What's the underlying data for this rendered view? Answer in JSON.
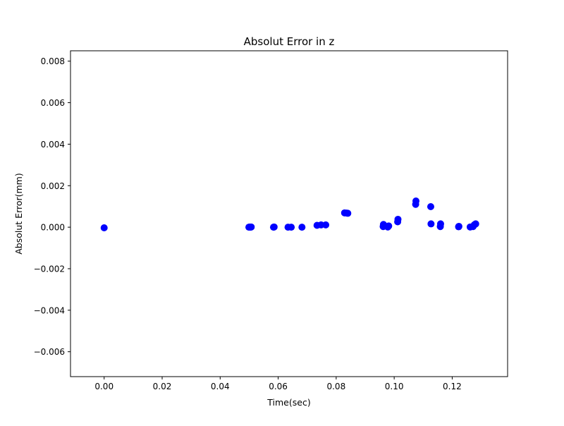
{
  "chart_data": {
    "type": "scatter",
    "title": "Absolut Error in z",
    "xlabel": "Time(sec)",
    "ylabel": "Absolut Error(mm)",
    "xlim": [
      -0.0116,
      0.1391
    ],
    "ylim": [
      -0.0072,
      0.0085
    ],
    "xticks": [
      0.0,
      0.02,
      0.04,
      0.06,
      0.08,
      0.1,
      0.12
    ],
    "xtick_labels": [
      "0.00",
      "0.02",
      "0.04",
      "0.06",
      "0.08",
      "0.10",
      "0.12"
    ],
    "yticks": [
      -0.006,
      -0.004,
      -0.002,
      0.0,
      0.002,
      0.004,
      0.006,
      0.008
    ],
    "ytick_labels": [
      "−0.006",
      "−0.004",
      "−0.002",
      "0.000",
      "0.002",
      "0.004",
      "0.006",
      "0.008"
    ],
    "grid": false,
    "legend": "none",
    "marker_color": "#0000ff",
    "points": [
      {
        "x": 0.0,
        "y": -3e-05
      },
      {
        "x": 0.0499,
        "y": 0.0
      },
      {
        "x": 0.0502,
        "y": 1e-05
      },
      {
        "x": 0.0505,
        "y": 0.0
      },
      {
        "x": 0.0507,
        "y": 1e-05
      },
      {
        "x": 0.0584,
        "y": 0.0
      },
      {
        "x": 0.0586,
        "y": 1e-05
      },
      {
        "x": 0.0634,
        "y": 0.0
      },
      {
        "x": 0.0645,
        "y": 0.0
      },
      {
        "x": 0.0682,
        "y": 0.0
      },
      {
        "x": 0.0734,
        "y": 9e-05
      },
      {
        "x": 0.0748,
        "y": 0.00011
      },
      {
        "x": 0.0764,
        "y": 0.00011
      },
      {
        "x": 0.0829,
        "y": 0.00069
      },
      {
        "x": 0.0836,
        "y": 0.00068
      },
      {
        "x": 0.084,
        "y": 0.00067
      },
      {
        "x": 0.0962,
        "y": 3e-05
      },
      {
        "x": 0.0963,
        "y": 0.00013
      },
      {
        "x": 0.0978,
        "y": 1e-05
      },
      {
        "x": 0.0981,
        "y": 6e-05
      },
      {
        "x": 0.1012,
        "y": 0.00026
      },
      {
        "x": 0.1013,
        "y": 0.00038
      },
      {
        "x": 0.1074,
        "y": 0.0011
      },
      {
        "x": 0.1075,
        "y": 0.00126
      },
      {
        "x": 0.1126,
        "y": 0.00099
      },
      {
        "x": 0.1127,
        "y": 0.00016
      },
      {
        "x": 0.1159,
        "y": 3e-05
      },
      {
        "x": 0.116,
        "y": 0.00016
      },
      {
        "x": 0.1222,
        "y": 2e-05
      },
      {
        "x": 0.1223,
        "y": 4e-05
      },
      {
        "x": 0.1262,
        "y": 1e-05
      },
      {
        "x": 0.1272,
        "y": 3e-05
      },
      {
        "x": 0.1276,
        "y": 0.00011
      },
      {
        "x": 0.1279,
        "y": 0.00014
      },
      {
        "x": 0.1281,
        "y": 0.00016
      }
    ]
  }
}
